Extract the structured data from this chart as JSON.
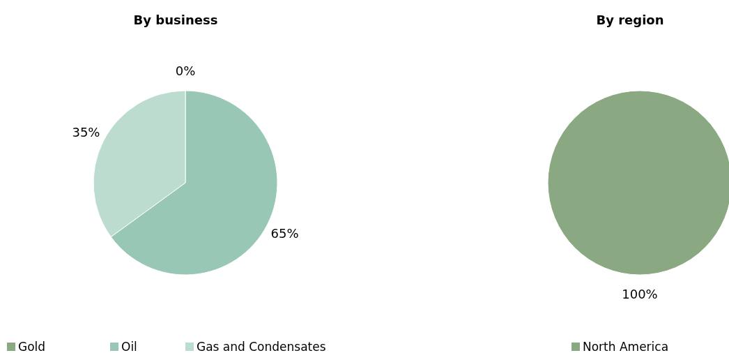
{
  "chart_data": [
    {
      "type": "pie",
      "title": "By business",
      "categories": [
        "Gold",
        "Oil",
        "Gas and Condensates"
      ],
      "values": [
        0,
        65,
        35
      ],
      "colors": [
        "#8aa882",
        "#98c8b5",
        "#bcdcd0"
      ],
      "value_labels": [
        "0%",
        "65%",
        "35%"
      ],
      "legend": "bottom"
    },
    {
      "type": "pie",
      "title": "By region",
      "categories": [
        "North America"
      ],
      "values": [
        100
      ],
      "colors": [
        "#8aa882"
      ],
      "value_labels": [
        "100%"
      ],
      "legend": "bottom"
    }
  ]
}
